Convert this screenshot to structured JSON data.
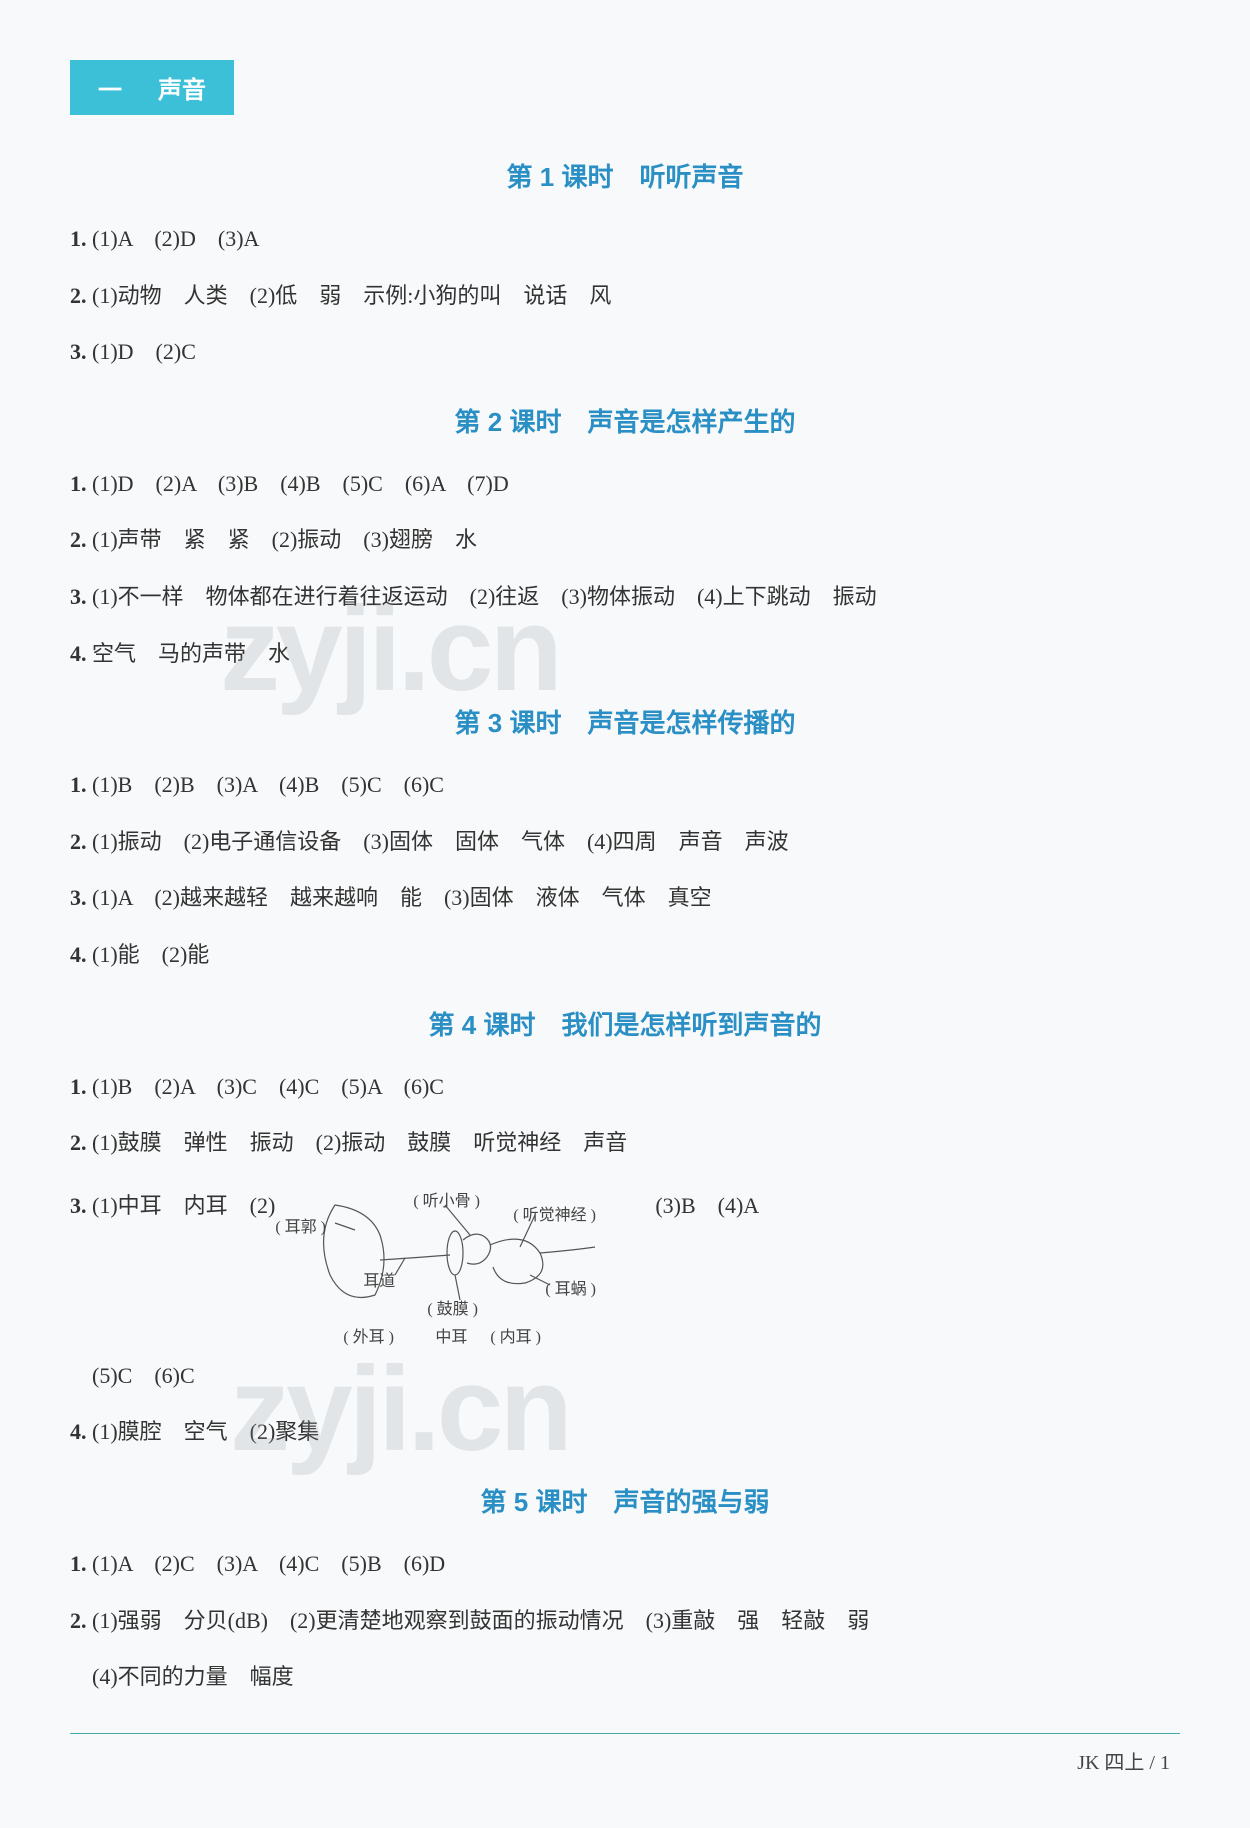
{
  "chapter": {
    "number": "一",
    "title": "声音"
  },
  "footer": "JK 四上 / 1",
  "watermark": "zyji.cn",
  "lessons": [
    {
      "title": "第 1 课时　听听声音",
      "items": [
        {
          "n": "1.",
          "text": "(1)A　(2)D　(3)A"
        },
        {
          "n": "2.",
          "text": "(1)动物　人类　(2)低　弱　示例:小狗的叫　说话　风"
        },
        {
          "n": "3.",
          "text": "(1)D　(2)C"
        }
      ]
    },
    {
      "title": "第 2 课时　声音是怎样产生的",
      "items": [
        {
          "n": "1.",
          "text": "(1)D　(2)A　(3)B　(4)B　(5)C　(6)A　(7)D"
        },
        {
          "n": "2.",
          "text": "(1)声带　紧　紧　(2)振动　(3)翅膀　水"
        },
        {
          "n": "3.",
          "text": "(1)不一样　物体都在进行着往返运动　(2)往返　(3)物体振动　(4)上下跳动　振动"
        },
        {
          "n": "4.",
          "text": "空气　马的声带　水"
        }
      ]
    },
    {
      "title": "第 3 课时　声音是怎样传播的",
      "items": [
        {
          "n": "1.",
          "text": "(1)B　(2)B　(3)A　(4)B　(5)C　(6)C"
        },
        {
          "n": "2.",
          "text": "(1)振动　(2)电子通信设备　(3)固体　固体　气体　(4)四周　声音　声波"
        },
        {
          "n": "3.",
          "text": "(1)A　(2)越来越轻　越来越响　能　(3)固体　液体　气体　真空"
        },
        {
          "n": "4.",
          "text": "(1)能　(2)能"
        }
      ]
    },
    {
      "title": "第 4 课时　我们是怎样听到声音的",
      "items": [
        {
          "n": "1.",
          "text": "(1)B　(2)A　(3)C　(4)C　(5)A　(6)C"
        },
        {
          "n": "2.",
          "text": "(1)鼓膜　弹性　振动　(2)振动　鼓膜　听觉神经　声音"
        }
      ],
      "diagram_row": {
        "left": "3. (1)中耳　内耳　(2)",
        "right": "(3)B　(4)A",
        "labels": {
          "ossicle": "( 听小骨 )",
          "auditory_nerve": "( 听觉神经 )",
          "auricle": "( 耳郭 )",
          "ear_canal": "耳道",
          "cochlea": "( 耳蜗 )",
          "eardrum": "( 鼓膜 )",
          "outer": "( 外耳 )",
          "middle": "中耳",
          "inner": "( 内耳 )"
        }
      },
      "after_diagram": [
        {
          "n": "",
          "text": "　(5)C　(6)C"
        },
        {
          "n": "4.",
          "text": "(1)膜腔　空气　(2)聚集"
        }
      ]
    },
    {
      "title": "第 5 课时　声音的强与弱",
      "items": [
        {
          "n": "1.",
          "text": "(1)A　(2)C　(3)A　(4)C　(5)B　(6)D"
        },
        {
          "n": "2.",
          "text": "(1)强弱　分贝(dB)　(2)更清楚地观察到鼓面的振动情况　(3)重敲　强　轻敲　弱"
        },
        {
          "n": "",
          "text": "　(4)不同的力量　幅度"
        }
      ]
    }
  ],
  "colors": {
    "tab_bg": "#3cc0d8",
    "title_color": "#2a8fc4",
    "text_color": "#333333",
    "page_bg": "#f8f9fa",
    "divider": "#44aaaa",
    "watermark": "rgba(150,160,165,0.22)"
  }
}
